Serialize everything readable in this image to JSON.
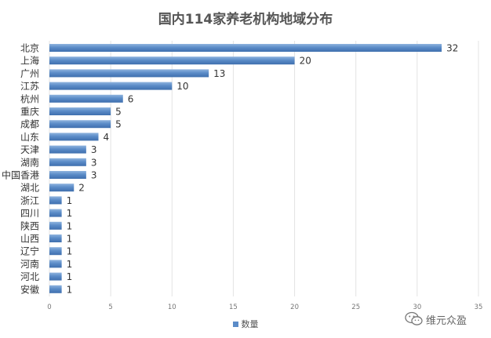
{
  "chart_data": {
    "type": "bar",
    "orientation": "horizontal",
    "title": "国内114家养老机构地域分布",
    "categories": [
      "北京",
      "上海",
      "广州",
      "江苏",
      "杭州",
      "重庆",
      "成都",
      "山东",
      "天津",
      "湖南",
      "中国香港",
      "湖北",
      "浙江",
      "四川",
      "陕西",
      "山西",
      "辽宁",
      "河南",
      "河北",
      "安徽"
    ],
    "series": [
      {
        "name": "数量",
        "values": [
          32,
          20,
          13,
          10,
          6,
          5,
          5,
          4,
          3,
          3,
          3,
          2,
          1,
          1,
          1,
          1,
          1,
          1,
          1,
          1
        ]
      }
    ],
    "xlim": [
      0,
      35
    ],
    "xticks": [
      0,
      5,
      10,
      15,
      20,
      25,
      30,
      35
    ],
    "grid": true,
    "data_labels": true,
    "legend": "bottom",
    "bar_color": "#5b8cc8"
  },
  "watermark": {
    "text": "维元众盈",
    "icon": "wechat-icon"
  }
}
